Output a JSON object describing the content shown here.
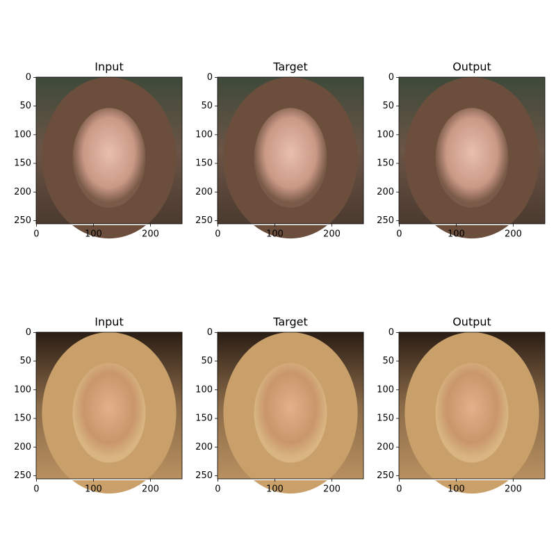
{
  "chart_data": [
    {
      "type": "image",
      "title": "Input",
      "xlim": [
        -0.5,
        255.5
      ],
      "ylim": [
        255.5,
        -0.5
      ],
      "xticks": [
        0,
        100,
        200
      ],
      "yticks": [
        0,
        50,
        100,
        150,
        200,
        250
      ]
    },
    {
      "type": "image",
      "title": "Target",
      "xlim": [
        -0.5,
        255.5
      ],
      "ylim": [
        255.5,
        -0.5
      ],
      "xticks": [
        0,
        100,
        200
      ],
      "yticks": [
        0,
        50,
        100,
        150,
        200,
        250
      ]
    },
    {
      "type": "image",
      "title": "Output",
      "xlim": [
        -0.5,
        255.5
      ],
      "ylim": [
        255.5,
        -0.5
      ],
      "xticks": [
        0,
        100,
        200
      ],
      "yticks": [
        0,
        50,
        100,
        150,
        200,
        250
      ]
    },
    {
      "type": "image",
      "title": "Input",
      "xlim": [
        -0.5,
        255.5
      ],
      "ylim": [
        255.5,
        -0.5
      ],
      "xticks": [
        0,
        100,
        200
      ],
      "yticks": [
        0,
        50,
        100,
        150,
        200,
        250
      ]
    },
    {
      "type": "image",
      "title": "Target",
      "xlim": [
        -0.5,
        255.5
      ],
      "ylim": [
        255.5,
        -0.5
      ],
      "xticks": [
        0,
        100,
        200
      ],
      "yticks": [
        0,
        50,
        100,
        150,
        200,
        250
      ]
    },
    {
      "type": "image",
      "title": "Output",
      "xlim": [
        -0.5,
        255.5
      ],
      "ylim": [
        255.5,
        -0.5
      ],
      "xticks": [
        0,
        100,
        200
      ],
      "yticks": [
        0,
        50,
        100,
        150,
        200,
        250
      ]
    }
  ]
}
